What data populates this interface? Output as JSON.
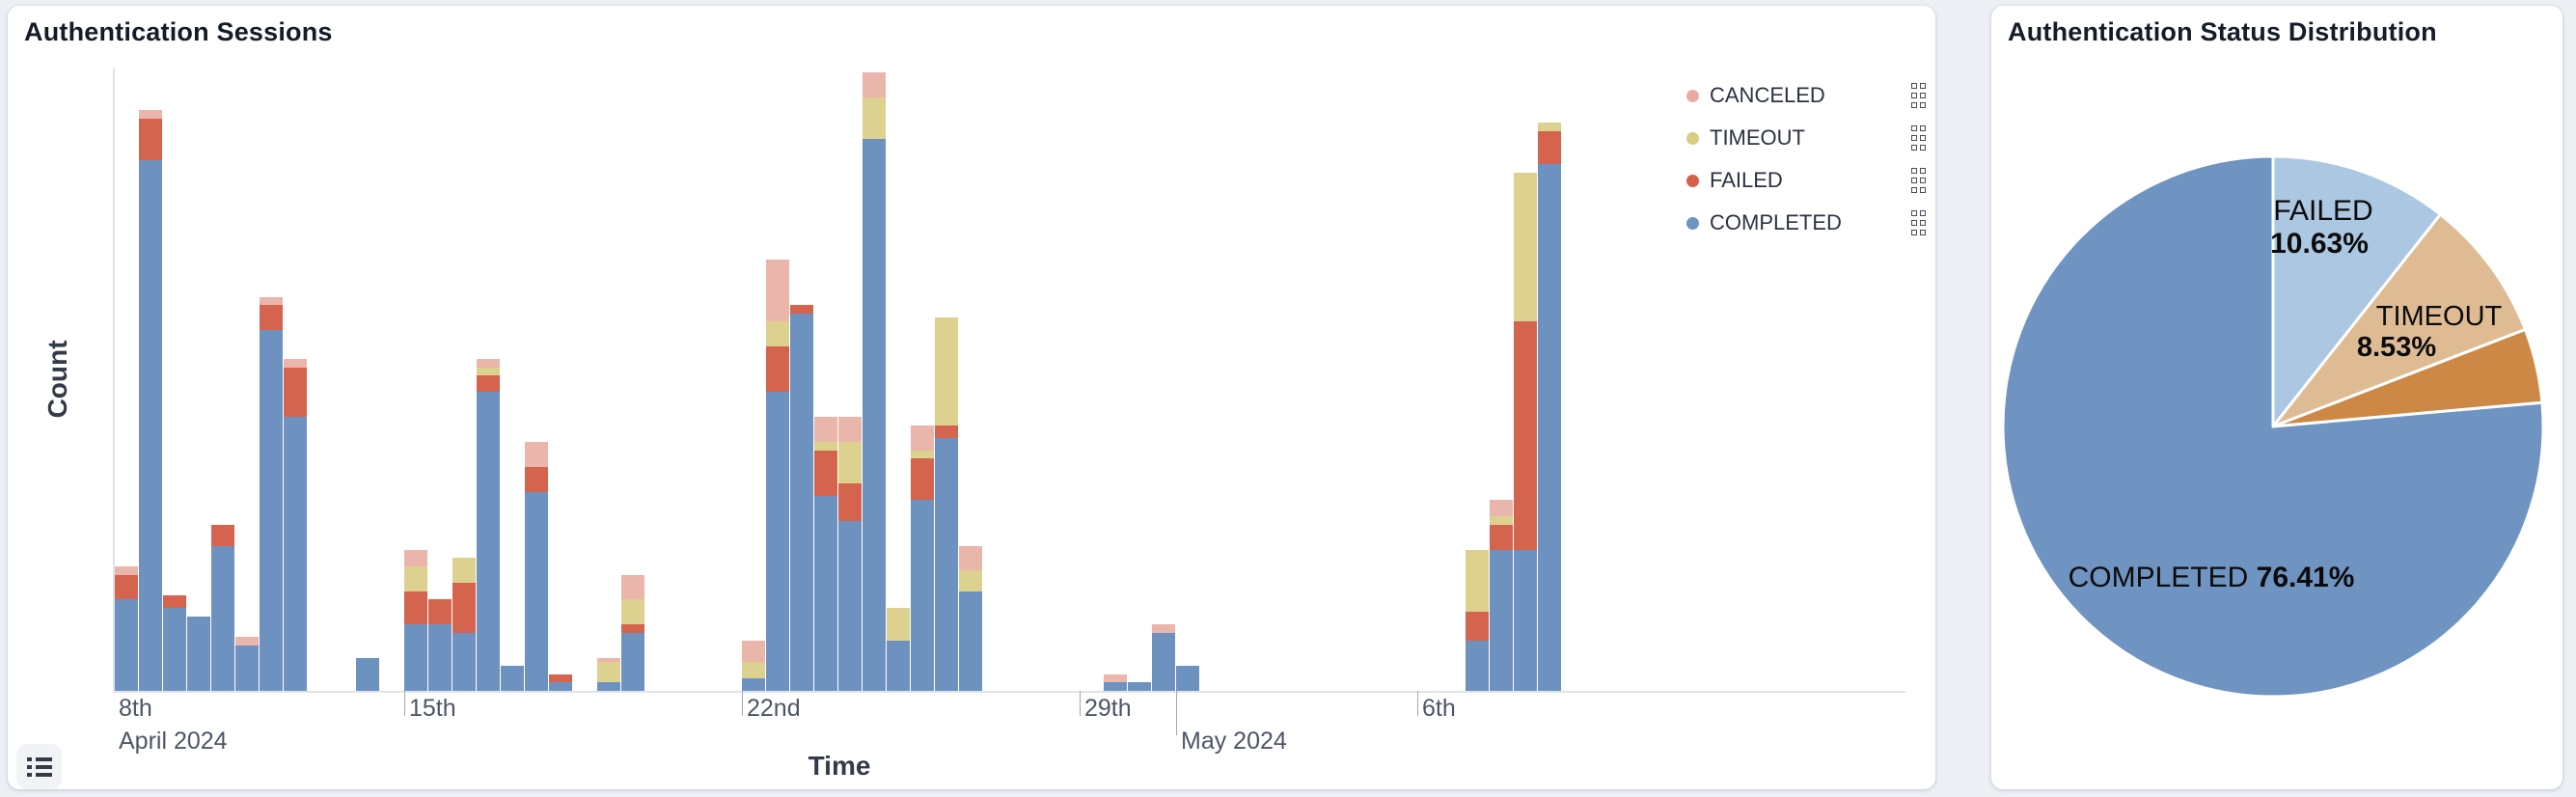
{
  "page": {
    "background": "#eceff4"
  },
  "left_card": {
    "title": "Authentication Sessions",
    "x_axis_label": "Time",
    "y_axis_label": "Count",
    "legend": [
      {
        "label": "CANCELED",
        "color": "#e9aca3"
      },
      {
        "label": "TIMEOUT",
        "color": "#d9cb82"
      },
      {
        "label": "FAILED",
        "color": "#d6604a"
      },
      {
        "label": "COMPLETED",
        "color": "#6f93c2"
      }
    ],
    "legend_handle_icon": "drag-handle-icon",
    "toolbar": {
      "legend_toggle_icon": "list-legend-toggle-icon"
    }
  },
  "right_card": {
    "title": "Authentication Status Distribution"
  },
  "chart_data": [
    {
      "type": "bar",
      "stacked": true,
      "title": "Authentication Sessions",
      "xlabel": "Time",
      "ylabel": "Count",
      "y_axis_tick_labels_visible": false,
      "ylim_estimated": [
        0,
        150
      ],
      "stack_order_bottom_to_top": [
        "COMPLETED",
        "FAILED",
        "TIMEOUT",
        "CANCELED"
      ],
      "colors": {
        "completed": "#6e92bf",
        "failed": "#d4644e",
        "timeout": "#ddd18f",
        "canceled": "#eab5ab"
      },
      "x_ticks": [
        {
          "label": "8th",
          "day": 0,
          "line": false,
          "row": 1,
          "dx": 54
        },
        {
          "label": "April 2024",
          "day": 0,
          "line": false,
          "row": 2,
          "dx": 54
        },
        {
          "label": "15th",
          "day": 7,
          "line": true,
          "row": 1,
          "dx": 5
        },
        {
          "label": "22nd",
          "day": 14,
          "line": true,
          "row": 1,
          "dx": 5
        },
        {
          "label": "29th",
          "day": 21,
          "line": true,
          "row": 1,
          "dx": 5
        },
        {
          "label": "May 2024",
          "day": 23,
          "line": true,
          "long": true,
          "row": 2,
          "dx": 5
        },
        {
          "label": "6th",
          "day": 28,
          "line": true,
          "row": 1,
          "dx": 5
        }
      ],
      "bins": [
        {
          "time": "Apr 9 AM",
          "day": 1.0,
          "completed": 22,
          "failed": 6,
          "timeout": 0,
          "canceled": 2
        },
        {
          "time": "Apr 9 PM",
          "day": 1.5,
          "completed": 128,
          "failed": 10,
          "timeout": 0,
          "canceled": 2
        },
        {
          "time": "Apr 10 AM",
          "day": 2.0,
          "completed": 20,
          "failed": 3,
          "timeout": 0,
          "canceled": 0
        },
        {
          "time": "Apr 10 PM",
          "day": 2.5,
          "completed": 18,
          "failed": 0,
          "timeout": 0,
          "canceled": 0
        },
        {
          "time": "Apr 11 AM",
          "day": 3.0,
          "completed": 35,
          "failed": 5,
          "timeout": 0,
          "canceled": 0
        },
        {
          "time": "Apr 11 PM",
          "day": 3.5,
          "completed": 11,
          "failed": 0,
          "timeout": 0,
          "canceled": 2
        },
        {
          "time": "Apr 12 AM",
          "day": 4.0,
          "completed": 87,
          "failed": 6,
          "timeout": 0,
          "canceled": 2
        },
        {
          "time": "Apr 12 PM",
          "day": 4.5,
          "completed": 66,
          "failed": 12,
          "timeout": 0,
          "canceled": 2
        },
        {
          "time": "Apr 14 AM",
          "day": 6.0,
          "completed": 8,
          "failed": 0,
          "timeout": 0,
          "canceled": 0
        },
        {
          "time": "Apr 15 AM",
          "day": 7.0,
          "completed": 16,
          "failed": 8,
          "timeout": 6,
          "canceled": 4
        },
        {
          "time": "Apr 15 PM",
          "day": 7.5,
          "completed": 16,
          "failed": 6,
          "timeout": 0,
          "canceled": 0
        },
        {
          "time": "Apr 16 AM",
          "day": 8.0,
          "completed": 14,
          "failed": 12,
          "timeout": 6,
          "canceled": 0
        },
        {
          "time": "Apr 16 PM",
          "day": 8.5,
          "completed": 72,
          "failed": 4,
          "timeout": 2,
          "canceled": 2
        },
        {
          "time": "Apr 17 AM",
          "day": 9.0,
          "completed": 6,
          "failed": 0,
          "timeout": 0,
          "canceled": 0
        },
        {
          "time": "Apr 17 PM",
          "day": 9.5,
          "completed": 48,
          "failed": 6,
          "timeout": 0,
          "canceled": 6
        },
        {
          "time": "Apr 18 AM",
          "day": 10.0,
          "completed": 2,
          "failed": 2,
          "timeout": 0,
          "canceled": 0
        },
        {
          "time": "Apr 19 AM",
          "day": 11.0,
          "completed": 2,
          "failed": 0,
          "timeout": 5,
          "canceled": 1
        },
        {
          "time": "Apr 19 PM",
          "day": 11.5,
          "completed": 14,
          "failed": 2,
          "timeout": 6,
          "canceled": 6
        },
        {
          "time": "Apr 22 AM",
          "day": 14.0,
          "completed": 3,
          "failed": 0,
          "timeout": 4,
          "canceled": 5
        },
        {
          "time": "Apr 22 PM",
          "day": 14.5,
          "completed": 72,
          "failed": 11,
          "timeout": 6,
          "canceled": 15
        },
        {
          "time": "Apr 23 AM",
          "day": 15.0,
          "completed": 91,
          "failed": 2,
          "timeout": 0,
          "canceled": 0
        },
        {
          "time": "Apr 23 PM",
          "day": 15.5,
          "completed": 47,
          "failed": 11,
          "timeout": 2,
          "canceled": 6
        },
        {
          "time": "Apr 24 AM",
          "day": 16.0,
          "completed": 41,
          "failed": 9,
          "timeout": 10,
          "canceled": 6
        },
        {
          "time": "Apr 24 PM",
          "day": 16.5,
          "completed": 133,
          "failed": 0,
          "timeout": 10,
          "canceled": 6
        },
        {
          "time": "Apr 25 AM",
          "day": 17.0,
          "completed": 12,
          "failed": 0,
          "timeout": 8,
          "canceled": 0
        },
        {
          "time": "Apr 25 PM",
          "day": 17.5,
          "completed": 46,
          "failed": 10,
          "timeout": 2,
          "canceled": 6
        },
        {
          "time": "Apr 26 AM",
          "day": 18.0,
          "completed": 61,
          "failed": 3,
          "timeout": 26,
          "canceled": 0
        },
        {
          "time": "Apr 26 PM",
          "day": 18.5,
          "completed": 24,
          "failed": 0,
          "timeout": 5,
          "canceled": 6
        },
        {
          "time": "Apr 29 PM",
          "day": 21.5,
          "completed": 2,
          "failed": 0,
          "timeout": 0,
          "canceled": 2
        },
        {
          "time": "Apr 30 AM",
          "day": 22.0,
          "completed": 2,
          "failed": 0,
          "timeout": 0,
          "canceled": 0
        },
        {
          "time": "Apr 30 PM",
          "day": 22.5,
          "completed": 14,
          "failed": 0,
          "timeout": 0,
          "canceled": 2
        },
        {
          "time": "May 1 AM",
          "day": 23.0,
          "completed": 6,
          "failed": 0,
          "timeout": 0,
          "canceled": 0
        },
        {
          "time": "May 7 AM",
          "day": 29.0,
          "completed": 12,
          "failed": 7,
          "timeout": 15,
          "canceled": 0
        },
        {
          "time": "May 7 PM",
          "day": 29.5,
          "completed": 34,
          "failed": 6,
          "timeout": 2,
          "canceled": 4
        },
        {
          "time": "May 8 AM",
          "day": 30.0,
          "completed": 34,
          "failed": 55,
          "timeout": 36,
          "canceled": 0
        },
        {
          "time": "May 8 PM",
          "day": 30.5,
          "completed": 127,
          "failed": 8,
          "timeout": 2,
          "canceled": 0
        }
      ]
    },
    {
      "type": "pie",
      "title": "Authentication Status Distribution",
      "start_angle": "top",
      "direction": "clockwise",
      "slices": [
        {
          "label": "FAILED",
          "pct": 10.63,
          "pct_label": "10.63%",
          "color": "#abc7e2",
          "label_visible": true
        },
        {
          "label": "TIMEOUT",
          "pct": 8.53,
          "pct_label": "8.53%",
          "color": "#dfbb93",
          "label_visible": true
        },
        {
          "label": "CANCELED",
          "pct": 4.43,
          "pct_label": "4.43%",
          "color": "#cc8844",
          "label_visible": false
        },
        {
          "label": "COMPLETED",
          "pct": 76.41,
          "pct_label": "76.41%",
          "color": "#7094c2",
          "label_visible": true
        }
      ]
    }
  ]
}
